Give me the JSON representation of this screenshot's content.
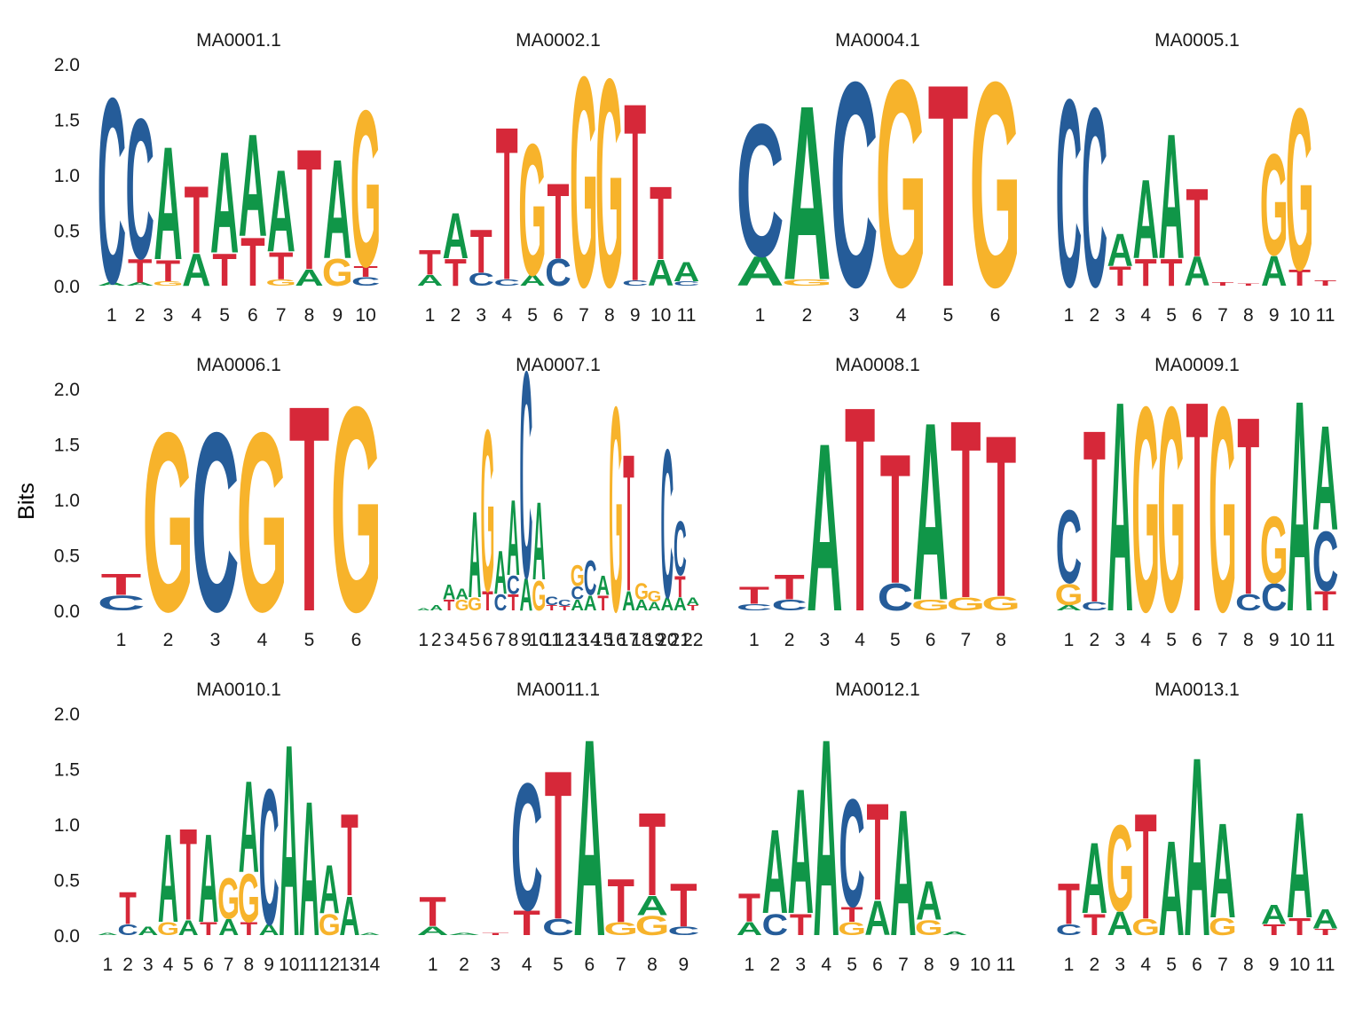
{
  "ylabel": "Bits",
  "colors": {
    "A": "#109648",
    "C": "#255C99",
    "G": "#F7B32B",
    "T": "#D62839"
  },
  "chart_data": {
    "type": "sequence-logo",
    "ylim": [
      0,
      2
    ],
    "ylabel": "Bits",
    "yticks": [
      "0.0",
      "0.5",
      "1.0",
      "1.5",
      "2.0"
    ],
    "grid": false,
    "layout": "3 rows x 4 facets",
    "panels": [
      {
        "title": "MA0001.1",
        "positions": [
          [
            [
              "A",
              0.03
            ],
            [
              "C",
              1.72
            ]
          ],
          [
            [
              "A",
              0.03
            ],
            [
              "T",
              0.22
            ],
            [
              "C",
              1.3
            ]
          ],
          [
            [
              "G",
              0.04
            ],
            [
              "T",
              0.2
            ],
            [
              "A",
              1.05
            ]
          ],
          [
            [
              "A",
              0.3
            ],
            [
              "T",
              0.62
            ]
          ],
          [
            [
              "T",
              0.3
            ],
            [
              "A",
              0.94
            ]
          ],
          [
            [
              "T",
              0.45
            ],
            [
              "A",
              0.95
            ]
          ],
          [
            [
              "G",
              0.06
            ],
            [
              "T",
              0.25
            ],
            [
              "A",
              0.76
            ]
          ],
          [
            [
              "A",
              0.15
            ],
            [
              "T",
              1.12
            ]
          ],
          [
            [
              "G",
              0.25
            ],
            [
              "A",
              0.92
            ]
          ],
          [
            [
              "C",
              0.08
            ],
            [
              "T",
              0.1
            ],
            [
              "G",
              1.45
            ]
          ]
        ]
      },
      {
        "title": "MA0002.1",
        "positions": [
          [
            [
              "A",
              0.1
            ],
            [
              "T",
              0.23
            ]
          ],
          [
            [
              "T",
              0.25
            ],
            [
              "A",
              0.42
            ]
          ],
          [
            [
              "C",
              0.12
            ],
            [
              "T",
              0.4
            ]
          ],
          [
            [
              "C",
              0.06
            ],
            [
              "T",
              1.42
            ]
          ],
          [
            [
              "A",
              0.1
            ],
            [
              "G",
              1.22
            ]
          ],
          [
            [
              "C",
              0.25
            ],
            [
              "T",
              0.7
            ]
          ],
          [
            [
              "G",
              1.95
            ]
          ],
          [
            [
              "G",
              1.93
            ]
          ],
          [
            [
              "C",
              0.05
            ],
            [
              "T",
              1.65
            ]
          ],
          [
            [
              "A",
              0.24
            ],
            [
              "T",
              0.68
            ]
          ],
          [
            [
              "C",
              0.04
            ],
            [
              "A",
              0.18
            ]
          ]
        ]
      },
      {
        "title": "MA0004.1",
        "positions": [
          [
            [
              "A",
              0.27
            ],
            [
              "C",
              1.23
            ]
          ],
          [
            [
              "G",
              0.06
            ],
            [
              "A",
              1.62
            ]
          ],
          [
            [
              "C",
              1.9
            ]
          ],
          [
            [
              "G",
              1.92
            ]
          ],
          [
            [
              "T",
              1.88
            ]
          ],
          [
            [
              "G",
              1.9
            ]
          ]
        ]
      },
      {
        "title": "MA0005.1",
        "positions": [
          [
            [
              "C",
              1.74
            ]
          ],
          [
            [
              "C",
              1.66
            ]
          ],
          [
            [
              "T",
              0.18
            ],
            [
              "A",
              0.3
            ]
          ],
          [
            [
              "T",
              0.25
            ],
            [
              "A",
              0.73
            ]
          ],
          [
            [
              "T",
              0.25
            ],
            [
              "A",
              1.16
            ]
          ],
          [
            [
              "A",
              0.27
            ],
            [
              "T",
              0.63
            ]
          ],
          [
            [
              "T",
              0.03
            ]
          ],
          [
            [
              "T",
              0.02
            ]
          ],
          [
            [
              "A",
              0.28
            ],
            [
              "G",
              0.94
            ]
          ],
          [
            [
              "T",
              0.15
            ],
            [
              "G",
              1.5
            ]
          ],
          [
            [
              "T",
              0.05
            ]
          ]
        ]
      },
      {
        "title": "MA0006.1",
        "positions": [
          [
            [
              "C",
              0.14
            ],
            [
              "T",
              0.2
            ]
          ],
          [
            [
              "G",
              1.66
            ]
          ],
          [
            [
              "C",
              1.66
            ]
          ],
          [
            [
              "G",
              1.66
            ]
          ],
          [
            [
              "T",
              1.91
            ]
          ],
          [
            [
              "G",
              1.9
            ]
          ]
        ]
      },
      {
        "title": "MA0007.1",
        "positions": [
          [
            [
              "A",
              0.02
            ]
          ],
          [
            [
              "A",
              0.05
            ]
          ],
          [
            [
              "T",
              0.1
            ],
            [
              "A",
              0.14
            ]
          ],
          [
            [
              "G",
              0.1
            ],
            [
              "A",
              0.1
            ]
          ],
          [
            [
              "G",
              0.12
            ],
            [
              "A",
              0.8
            ]
          ],
          [
            [
              "T",
              0.18
            ],
            [
              "G",
              1.5
            ]
          ],
          [
            [
              "C",
              0.15
            ],
            [
              "A",
              0.4
            ]
          ],
          [
            [
              "T",
              0.15
            ],
            [
              "C",
              0.17
            ],
            [
              "A",
              0.7
            ]
          ],
          [
            [
              "A",
              0.3
            ],
            [
              "C",
              1.92
            ]
          ],
          [
            [
              "G",
              0.28
            ],
            [
              "A",
              0.72
            ]
          ],
          [
            [
              "T",
              0.05
            ],
            [
              "C",
              0.08
            ]
          ],
          [
            [
              "T",
              0.04
            ],
            [
              "C",
              0.06
            ]
          ],
          [
            [
              "A",
              0.1
            ],
            [
              "C",
              0.12
            ],
            [
              "G",
              0.2
            ]
          ],
          [
            [
              "A",
              0.14
            ],
            [
              "C",
              0.32
            ]
          ],
          [
            [
              "T",
              0.14
            ],
            [
              "A",
              0.18
            ]
          ],
          [
            [
              "G",
              1.9
            ]
          ],
          [
            [
              "A",
              0.18
            ],
            [
              "T",
              1.27
            ]
          ],
          [
            [
              "A",
              0.1
            ],
            [
              "G",
              0.15
            ]
          ],
          [
            [
              "A",
              0.08
            ],
            [
              "G",
              0.1
            ]
          ],
          [
            [
              "A",
              0.12
            ],
            [
              "C",
              1.38
            ]
          ],
          [
            [
              "A",
              0.12
            ],
            [
              "T",
              0.2
            ],
            [
              "C",
              0.5
            ]
          ],
          [
            [
              "T",
              0.05
            ],
            [
              "A",
              0.07
            ]
          ]
        ]
      },
      {
        "title": "MA0008.1",
        "positions": [
          [
            [
              "C",
              0.06
            ],
            [
              "T",
              0.16
            ]
          ],
          [
            [
              "C",
              0.1
            ],
            [
              "T",
              0.23
            ]
          ],
          [
            [
              "A",
              1.56
            ]
          ],
          [
            [
              "T",
              1.9
            ]
          ],
          [
            [
              "C",
              0.25
            ],
            [
              "T",
              1.2
            ]
          ],
          [
            [
              "G",
              0.1
            ],
            [
              "A",
              1.65
            ]
          ],
          [
            [
              "G",
              0.12
            ],
            [
              "T",
              1.65
            ]
          ],
          [
            [
              "G",
              0.13
            ],
            [
              "T",
              1.5
            ]
          ]
        ]
      },
      {
        "title": "MA0009.1",
        "positions": [
          [
            [
              "A",
              0.05
            ],
            [
              "G",
              0.2
            ],
            [
              "C",
              0.68
            ]
          ],
          [
            [
              "C",
              0.08
            ],
            [
              "T",
              1.6
            ]
          ],
          [
            [
              "A",
              1.95
            ]
          ],
          [
            [
              "G",
              1.9
            ]
          ],
          [
            [
              "G",
              1.9
            ]
          ],
          [
            [
              "T",
              1.95
            ]
          ],
          [
            [
              "G",
              1.9
            ]
          ],
          [
            [
              "C",
              0.15
            ],
            [
              "T",
              1.65
            ]
          ],
          [
            [
              "C",
              0.25
            ],
            [
              "G",
              0.62
            ]
          ],
          [
            [
              "A",
              1.96
            ]
          ],
          [
            [
              "T",
              0.18
            ],
            [
              "C",
              0.55
            ],
            [
              "A",
              0.97
            ]
          ]
        ]
      },
      {
        "title": "MA0010.1",
        "positions": [
          [
            [
              "A",
              0.02
            ]
          ],
          [
            [
              "C",
              0.1
            ],
            [
              "T",
              0.3
            ]
          ],
          [
            [
              "A",
              0.08
            ]
          ],
          [
            [
              "G",
              0.12
            ],
            [
              "A",
              0.82
            ]
          ],
          [
            [
              "A",
              0.14
            ],
            [
              "T",
              0.85
            ]
          ],
          [
            [
              "T",
              0.12
            ],
            [
              "A",
              0.82
            ]
          ],
          [
            [
              "A",
              0.15
            ],
            [
              "G",
              0.38
            ]
          ],
          [
            [
              "T",
              0.12
            ],
            [
              "G",
              0.45
            ],
            [
              "A",
              0.85
            ]
          ],
          [
            [
              "A",
              0.1
            ],
            [
              "C",
              1.26
            ]
          ],
          [
            [
              "A",
              1.78
            ]
          ],
          [
            [
              "A",
              1.25
            ]
          ],
          [
            [
              "G",
              0.2
            ],
            [
              "A",
              0.45
            ]
          ],
          [
            [
              "A",
              0.36
            ],
            [
              "T",
              0.76
            ]
          ],
          [
            [
              "A",
              0.02
            ]
          ]
        ]
      },
      {
        "title": "MA0011.1",
        "positions": [
          [
            [
              "A",
              0.08
            ],
            [
              "T",
              0.27
            ]
          ],
          [
            [
              "A",
              0.02
            ]
          ],
          [
            [
              "T",
              0.02
            ]
          ],
          [
            [
              "T",
              0.23
            ],
            [
              "C",
              1.18
            ]
          ],
          [
            [
              "C",
              0.15
            ],
            [
              "T",
              1.38
            ]
          ],
          [
            [
              "A",
              1.83
            ]
          ],
          [
            [
              "G",
              0.12
            ],
            [
              "T",
              0.4
            ]
          ],
          [
            [
              "G",
              0.18
            ],
            [
              "A",
              0.18
            ],
            [
              "T",
              0.77
            ]
          ],
          [
            [
              "C",
              0.08
            ],
            [
              "T",
              0.4
            ]
          ]
        ]
      },
      {
        "title": "MA0012.1",
        "positions": [
          [
            [
              "A",
              0.12
            ],
            [
              "T",
              0.26
            ]
          ],
          [
            [
              "C",
              0.2
            ],
            [
              "A",
              0.78
            ]
          ],
          [
            [
              "T",
              0.2
            ],
            [
              "A",
              1.16
            ]
          ],
          [
            [
              "A",
              1.83
            ]
          ],
          [
            [
              "G",
              0.12
            ],
            [
              "T",
              0.14
            ],
            [
              "C",
              1.0
            ]
          ],
          [
            [
              "A",
              0.32
            ],
            [
              "T",
              0.9
            ]
          ],
          [
            [
              "A",
              1.17
            ]
          ],
          [
            [
              "G",
              0.14
            ],
            [
              "A",
              0.36
            ]
          ],
          [
            [
              "A",
              0.03
            ]
          ],
          [],
          []
        ]
      },
      {
        "title": "MA0013.1",
        "positions": [
          [
            [
              "C",
              0.1
            ],
            [
              "T",
              0.38
            ]
          ],
          [
            [
              "T",
              0.2
            ],
            [
              "A",
              0.66
            ]
          ],
          [
            [
              "A",
              0.22
            ],
            [
              "G",
              0.8
            ]
          ],
          [
            [
              "G",
              0.15
            ],
            [
              "T",
              0.98
            ]
          ],
          [
            [
              "A",
              0.88
            ]
          ],
          [
            [
              "A",
              1.66
            ]
          ],
          [
            [
              "G",
              0.16
            ],
            [
              "A",
              0.88
            ]
          ],
          [],
          [
            [
              "T",
              0.1
            ],
            [
              "A",
              0.18
            ]
          ],
          [
            [
              "T",
              0.16
            ],
            [
              "A",
              0.98
            ]
          ],
          [
            [
              "T",
              0.06
            ],
            [
              "A",
              0.18
            ]
          ]
        ]
      }
    ]
  }
}
